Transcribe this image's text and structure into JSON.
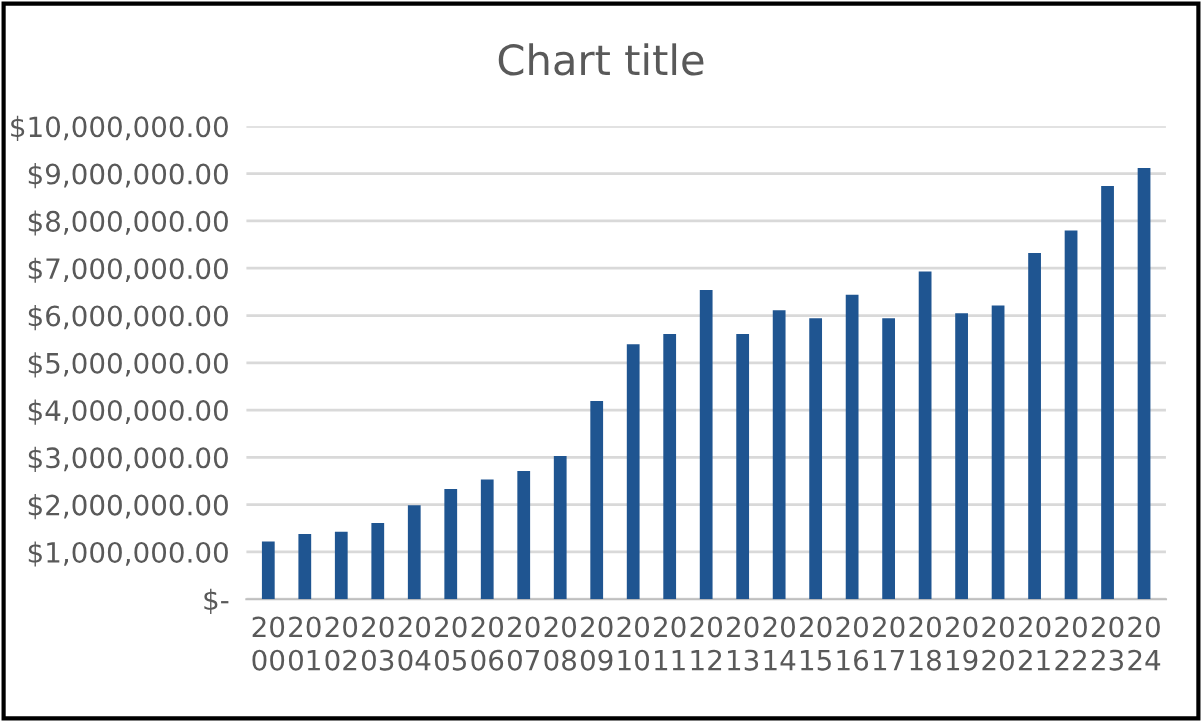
{
  "chart_data": {
    "type": "bar",
    "title": "Chart title",
    "categories": [
      "2000",
      "2001",
      "2002",
      "2003",
      "2004",
      "2005",
      "2006",
      "2007",
      "2008",
      "2009",
      "2010",
      "2011",
      "2012",
      "2013",
      "2014",
      "2015",
      "2016",
      "2017",
      "2018",
      "2019",
      "2020",
      "2021",
      "2022",
      "2023",
      "2024"
    ],
    "values": [
      1220000,
      1380000,
      1430000,
      1610000,
      1990000,
      2330000,
      2530000,
      2710000,
      3030000,
      4190000,
      5390000,
      5610000,
      6540000,
      5610000,
      6110000,
      5940000,
      6440000,
      5940000,
      6930000,
      6050000,
      6210000,
      7320000,
      7800000,
      8740000,
      9120000
    ],
    "color": "#1f5591",
    "ylim": [
      0,
      10000000
    ],
    "yticks": [
      {
        "value": 0,
        "label": "$-"
      },
      {
        "value": 1000000,
        "label": "$1,000,000.00"
      },
      {
        "value": 2000000,
        "label": "$2,000,000.00"
      },
      {
        "value": 3000000,
        "label": "$3,000,000.00"
      },
      {
        "value": 4000000,
        "label": "$4,000,000.00"
      },
      {
        "value": 5000000,
        "label": "$5,000,000.00"
      },
      {
        "value": 6000000,
        "label": "$6,000,000.00"
      },
      {
        "value": 7000000,
        "label": "$7,000,000.00"
      },
      {
        "value": 8000000,
        "label": "$8,000,000.00"
      },
      {
        "value": 9000000,
        "label": "$9,000,000.00"
      },
      {
        "value": 10000000,
        "label": "$10,000,000.00"
      }
    ],
    "grid": "y"
  }
}
